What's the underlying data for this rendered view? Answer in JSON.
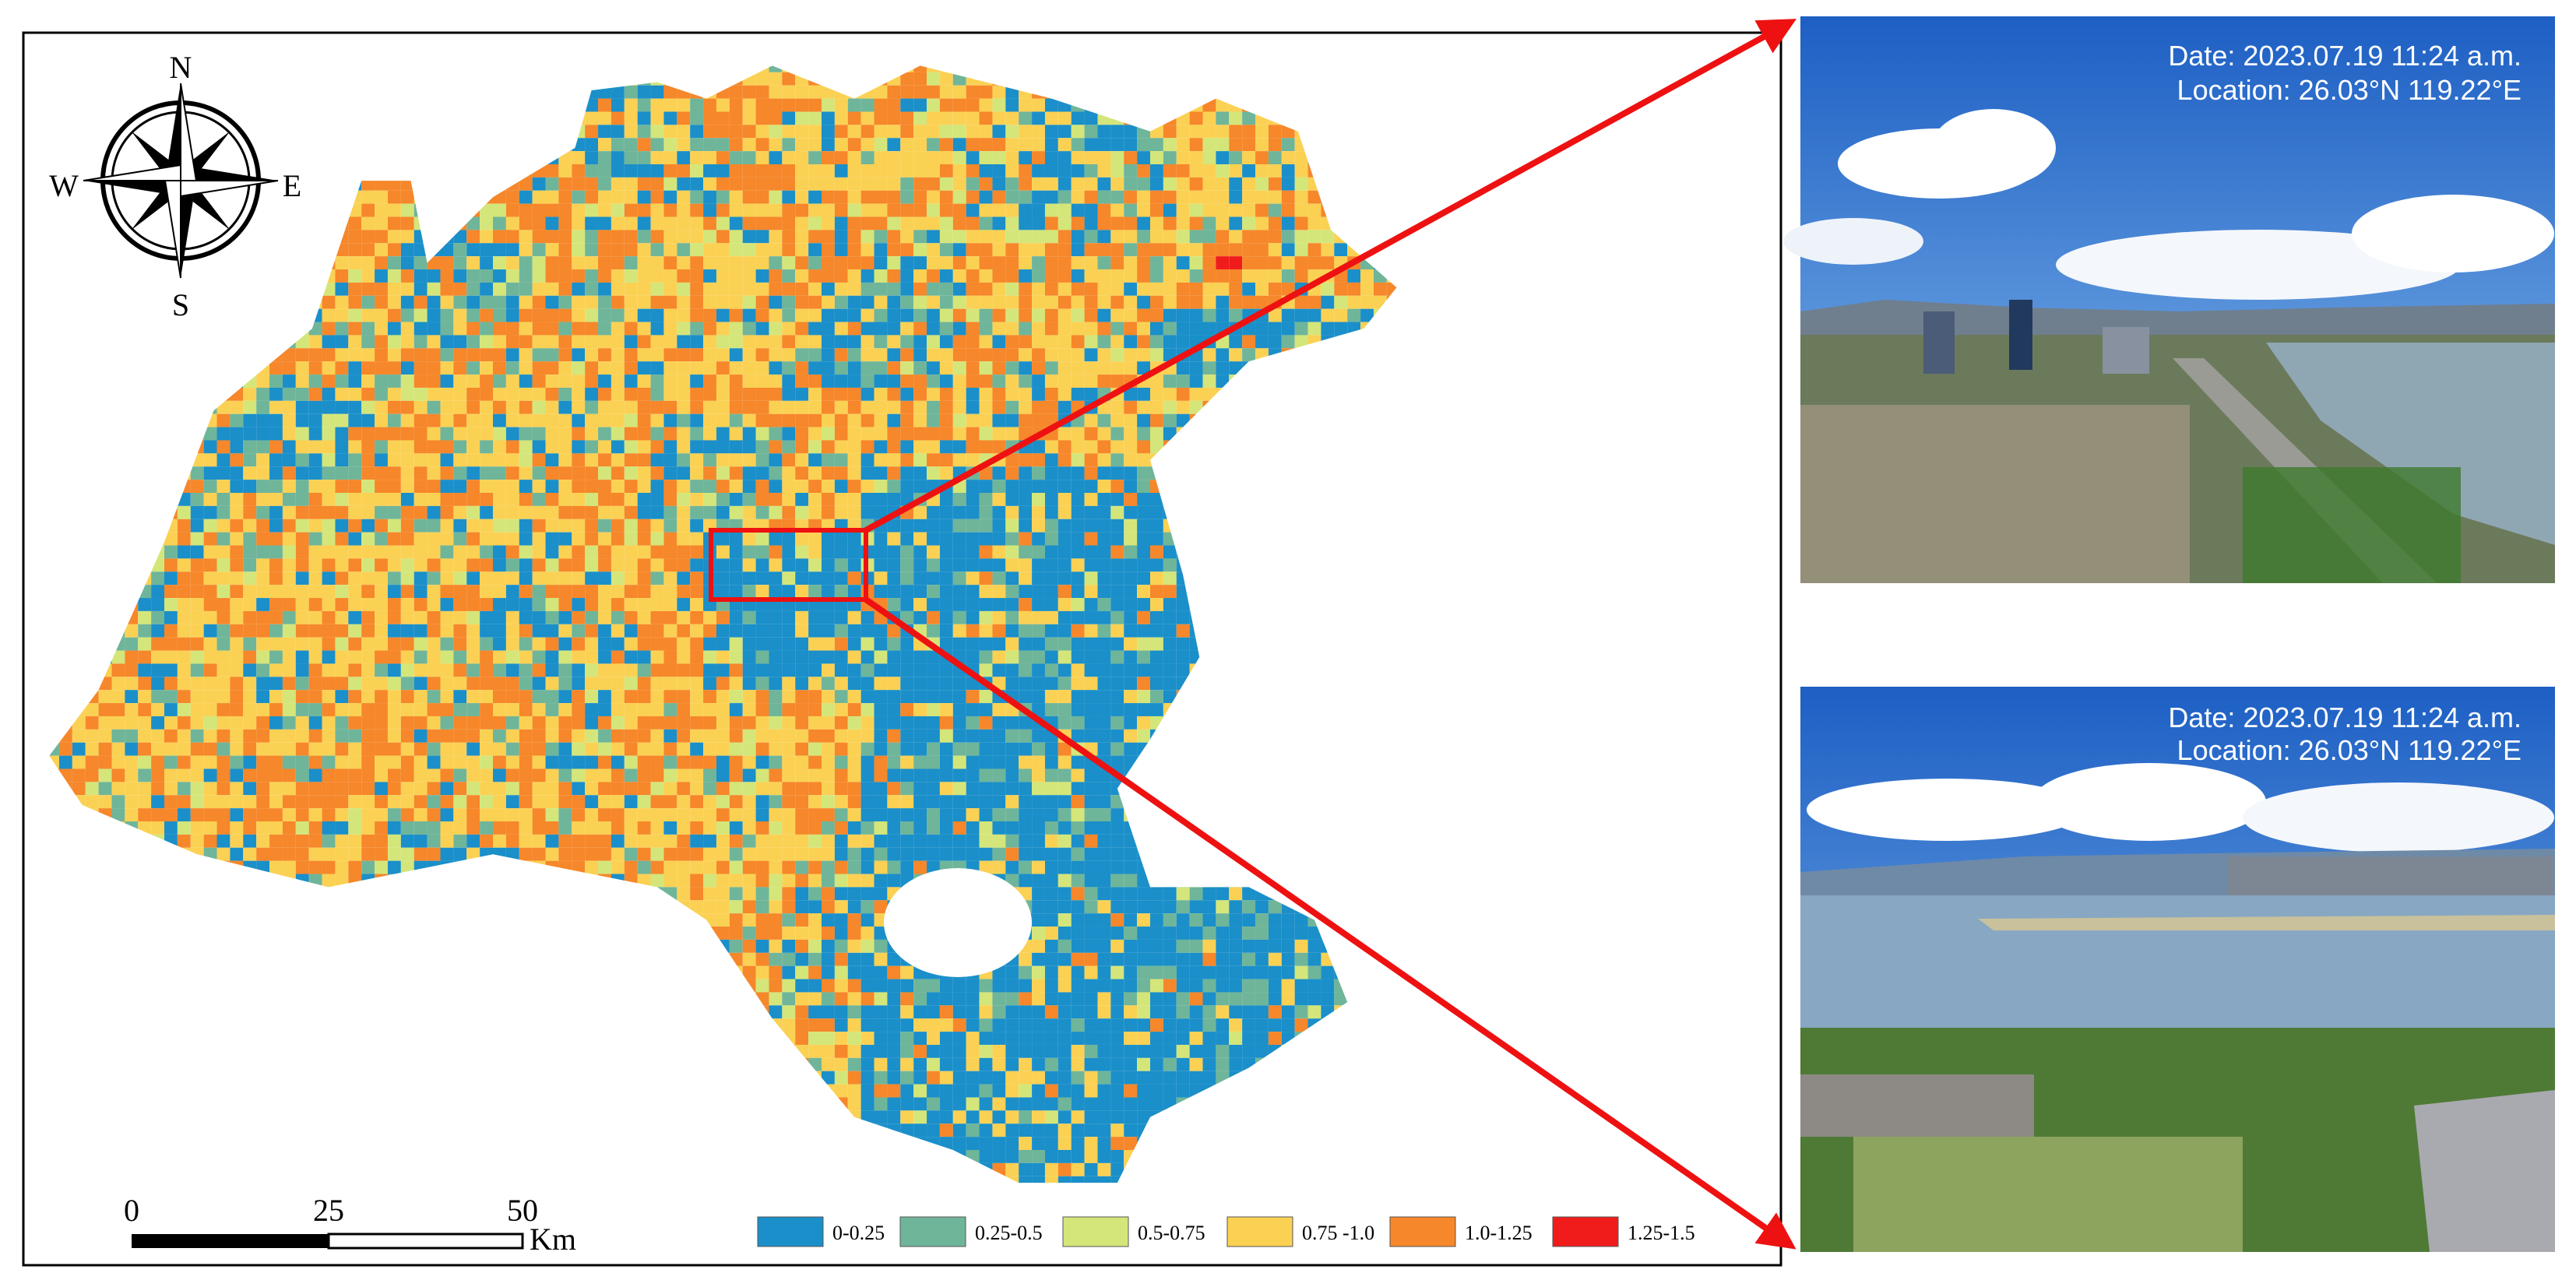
{
  "compass": {
    "north": "N",
    "south": "S",
    "east": "E",
    "west": "W"
  },
  "scale_bar": {
    "labels": [
      "0",
      "25",
      "50"
    ],
    "unit": "Km"
  },
  "legend": {
    "items": [
      {
        "label": "0-0.25",
        "color": "#1a8fc9"
      },
      {
        "label": "0.25-0.5",
        "color": "#6fb59a"
      },
      {
        "label": "0.5-0.75",
        "color": "#d4e67a"
      },
      {
        "label": "0.75 -1.0",
        "color": "#fbd154"
      },
      {
        "label": "1.0-1.25",
        "color": "#f6872a"
      },
      {
        "label": "1.25-1.5",
        "color": "#f01c1c"
      }
    ]
  },
  "photos": [
    {
      "date": "Date: 2023.07.19 11:24 a.m.",
      "location": "Location: 26.03°N  119.22°E"
    },
    {
      "date": "Date: 2023.07.19 11:24 a.m.",
      "location": "Location: 26.03°N  119.22°E"
    }
  ]
}
